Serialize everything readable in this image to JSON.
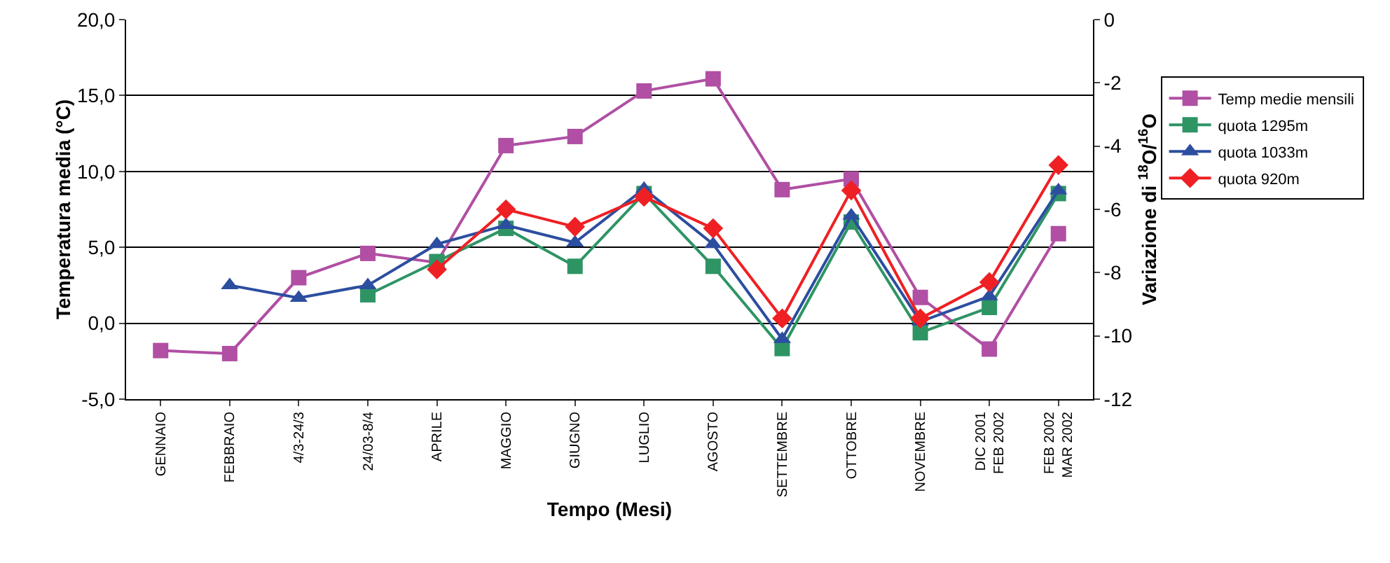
{
  "chart_data": {
    "type": "line",
    "xlabel": "Tempo (Mesi)",
    "ylabel": "Temperatura media (°C)",
    "y2label": "Variazione di $^{18}$O/$^{16}$O",
    "categories": [
      "GENNAIO",
      "FEBBRAIO",
      "4/3-24/3",
      "24/03-8/4",
      "APRILE",
      "MAGGIO",
      "GIUGNO",
      "LUGLIO",
      "AGOSTO",
      "SETTEMBRE",
      "OTTOBRE",
      "NOVEMBRE",
      "DIC 2001 FEB 2002",
      "FEB 2002 MAR 2002"
    ],
    "series": [
      {
        "name": "Temp medie mensili",
        "color": "#b04fa3",
        "marker": "square",
        "values": [
          -1.8,
          -2.0,
          3.0,
          4.6,
          4.0,
          11.7,
          12.3,
          15.3,
          16.1,
          8.8,
          9.5,
          1.7,
          -1.7,
          5.9
        ]
      },
      {
        "name": "quota 1295m",
        "color": "#2e9464",
        "marker": "square",
        "axis": "y2",
        "values": [
          null,
          null,
          null,
          -8.7,
          -7.65,
          -6.6,
          -7.8,
          -5.5,
          -7.8,
          -10.4,
          -6.4,
          -9.9,
          -9.1,
          -5.5
        ]
      },
      {
        "name": "quota 1033m",
        "color": "#2c4ea0",
        "marker": "triangle",
        "axis": "y2",
        "values": [
          null,
          -8.4,
          -8.8,
          -8.4,
          -7.1,
          -6.5,
          -7.05,
          -5.35,
          -7.1,
          -10.1,
          -6.2,
          -9.55,
          -8.75,
          -5.4
        ]
      },
      {
        "name": "quota 920m",
        "color": "#ee2024",
        "marker": "diamond",
        "axis": "y2",
        "values": [
          null,
          null,
          null,
          null,
          -7.9,
          -6.0,
          -6.55,
          -5.6,
          -6.6,
          -9.45,
          -5.4,
          -9.45,
          -8.3,
          -4.6
        ]
      }
    ],
    "ylim": [
      -5,
      20
    ],
    "yticks": [
      {
        "value": -5,
        "label": "-5,0"
      },
      {
        "value": 0,
        "label": "0,0"
      },
      {
        "value": 5,
        "label": "5,0"
      },
      {
        "value": 10,
        "label": "10,0"
      },
      {
        "value": 15,
        "label": "15,0"
      },
      {
        "value": 20,
        "label": "20,0"
      }
    ],
    "y2lim": [
      -12,
      0
    ],
    "y2ticks": [
      -12,
      -10,
      -8,
      -6,
      -4,
      -2,
      0
    ],
    "grid": "y",
    "legend": "right",
    "line_style": "solid"
  }
}
